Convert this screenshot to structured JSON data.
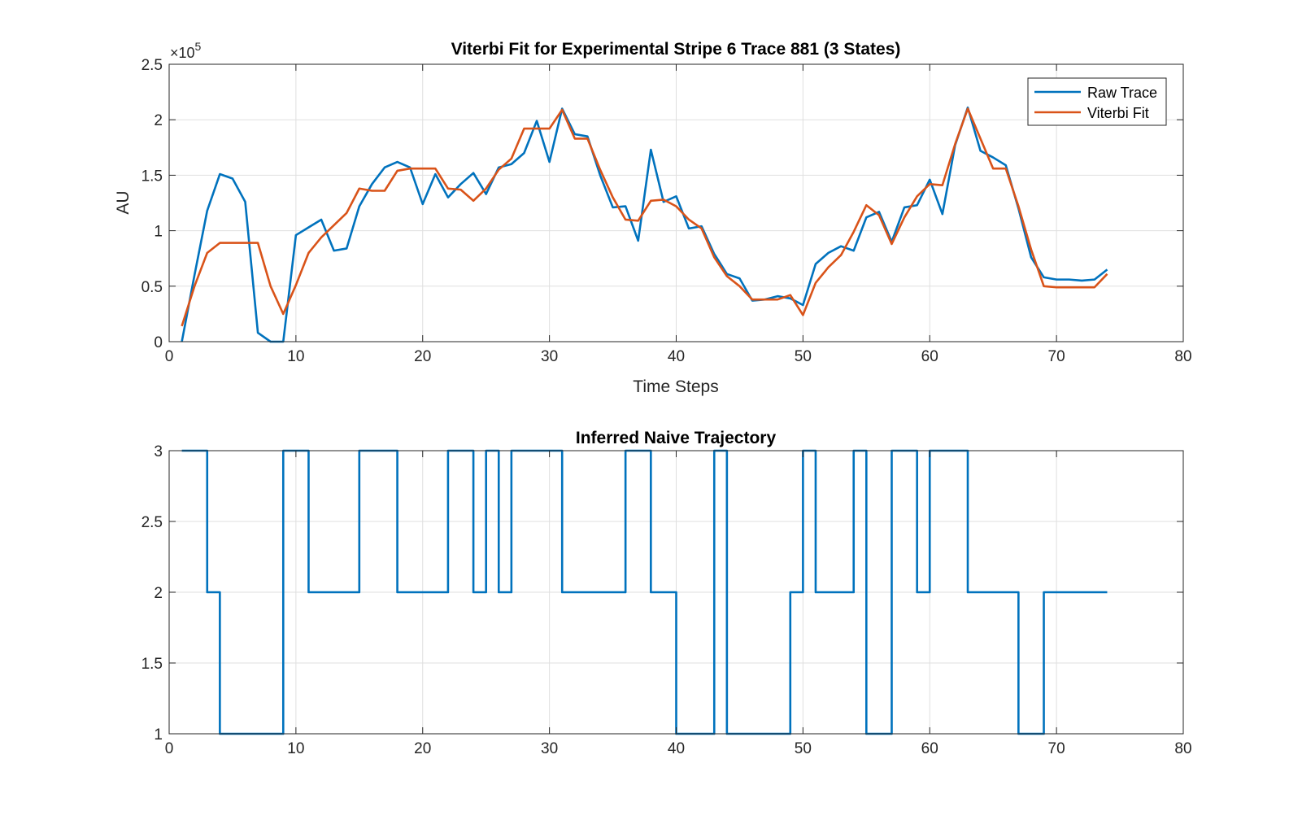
{
  "chart_data": [
    {
      "type": "line",
      "title": "Viterbi Fit for Experimental Stripe 6 Trace 881 (3 States)",
      "xlabel": "Time Steps",
      "ylabel": "AU",
      "y_exponent_label": "×10",
      "y_exponent_power": "5",
      "xlim": [
        0,
        80
      ],
      "ylim": [
        0,
        2.5
      ],
      "xticks": [
        0,
        10,
        20,
        30,
        40,
        50,
        60,
        70,
        80
      ],
      "yticks": [
        0,
        0.5,
        1,
        1.5,
        2,
        2.5
      ],
      "grid": true,
      "legend_position": "top-right",
      "series": [
        {
          "name": "Raw Trace",
          "color": "#0072BD",
          "x": [
            1,
            2,
            3,
            4,
            5,
            6,
            7,
            8,
            9,
            10,
            11,
            12,
            13,
            14,
            15,
            16,
            17,
            18,
            19,
            20,
            21,
            22,
            23,
            24,
            25,
            26,
            27,
            28,
            29,
            30,
            31,
            32,
            33,
            34,
            35,
            36,
            37,
            38,
            39,
            40,
            41,
            42,
            43,
            44,
            45,
            46,
            47,
            48,
            49,
            50,
            51,
            52,
            53,
            54,
            55,
            56,
            57,
            58,
            59,
            60,
            61,
            62,
            63,
            64,
            65,
            66,
            67,
            68,
            69,
            70,
            71,
            72,
            73,
            74
          ],
          "values": [
            0,
            0.6,
            1.18,
            1.51,
            1.47,
            1.26,
            0.08,
            0,
            0,
            0.96,
            1.03,
            1.1,
            0.82,
            0.84,
            1.22,
            1.42,
            1.57,
            1.62,
            1.57,
            1.24,
            1.51,
            1.3,
            1.42,
            1.52,
            1.33,
            1.57,
            1.6,
            1.7,
            1.99,
            1.62,
            2.1,
            1.87,
            1.85,
            1.5,
            1.21,
            1.22,
            0.91,
            1.73,
            1.26,
            1.31,
            1.02,
            1.04,
            0.79,
            0.61,
            0.57,
            0.37,
            0.38,
            0.41,
            0.39,
            0.33,
            0.7,
            0.8,
            0.86,
            0.82,
            1.12,
            1.17,
            0.9,
            1.21,
            1.23,
            1.46,
            1.15,
            1.77,
            2.11,
            1.72,
            1.66,
            1.59,
            1.2,
            0.76,
            0.58,
            0.56,
            0.56,
            0.55,
            0.56,
            0.65
          ]
        },
        {
          "name": "Viterbi Fit",
          "color": "#D95319",
          "x": [
            1,
            2,
            3,
            4,
            5,
            6,
            7,
            8,
            9,
            10,
            11,
            12,
            13,
            14,
            15,
            16,
            17,
            18,
            19,
            20,
            21,
            22,
            23,
            24,
            25,
            26,
            27,
            28,
            29,
            30,
            31,
            32,
            33,
            34,
            35,
            36,
            37,
            38,
            39,
            40,
            41,
            42,
            43,
            44,
            45,
            46,
            47,
            48,
            49,
            50,
            51,
            52,
            53,
            54,
            55,
            56,
            57,
            58,
            59,
            60,
            61,
            62,
            63,
            64,
            65,
            66,
            67,
            68,
            69,
            70,
            71,
            72,
            73,
            74
          ],
          "values": [
            0.14,
            0.5,
            0.8,
            0.89,
            0.89,
            0.89,
            0.89,
            0.5,
            0.25,
            0.51,
            0.8,
            0.94,
            1.05,
            1.16,
            1.38,
            1.36,
            1.36,
            1.54,
            1.56,
            1.56,
            1.56,
            1.38,
            1.37,
            1.27,
            1.38,
            1.55,
            1.65,
            1.92,
            1.92,
            1.92,
            2.09,
            1.83,
            1.83,
            1.55,
            1.3,
            1.1,
            1.09,
            1.27,
            1.28,
            1.22,
            1.1,
            1.02,
            0.76,
            0.59,
            0.5,
            0.38,
            0.38,
            0.38,
            0.42,
            0.24,
            0.53,
            0.67,
            0.78,
            0.99,
            1.23,
            1.14,
            0.88,
            1.12,
            1.31,
            1.42,
            1.41,
            1.78,
            2.1,
            1.83,
            1.56,
            1.56,
            1.22,
            0.83,
            0.5,
            0.49,
            0.49,
            0.49,
            0.49,
            0.61
          ]
        }
      ]
    },
    {
      "type": "line",
      "title": "Inferred Naive Trajectory",
      "xlim": [
        0,
        80
      ],
      "ylim": [
        1,
        3
      ],
      "xticks": [
        0,
        10,
        20,
        30,
        40,
        50,
        60,
        70,
        80
      ],
      "yticks": [
        1,
        1.5,
        2,
        2.5,
        3
      ],
      "grid": true,
      "step": true,
      "series": [
        {
          "color": "#0072BD",
          "x": [
            1,
            2,
            3,
            4,
            5,
            6,
            7,
            8,
            9,
            10,
            11,
            12,
            13,
            14,
            15,
            16,
            17,
            18,
            19,
            20,
            21,
            22,
            23,
            24,
            25,
            26,
            27,
            28,
            29,
            30,
            31,
            32,
            33,
            34,
            35,
            36,
            37,
            38,
            39,
            40,
            41,
            42,
            43,
            44,
            45,
            46,
            47,
            48,
            49,
            50,
            51,
            52,
            53,
            54,
            55,
            56,
            57,
            58,
            59,
            60,
            61,
            62,
            63,
            64,
            65,
            66,
            67,
            68,
            69,
            70,
            71,
            72,
            73,
            74
          ],
          "values": [
            3,
            3,
            2,
            1,
            1,
            1,
            1,
            1,
            3,
            3,
            2,
            2,
            2,
            2,
            3,
            3,
            3,
            2,
            2,
            2,
            2,
            3,
            3,
            2,
            3,
            2,
            3,
            3,
            3,
            3,
            2,
            2,
            2,
            2,
            2,
            3,
            3,
            2,
            2,
            1,
            1,
            1,
            3,
            1,
            1,
            1,
            1,
            1,
            2,
            3,
            2,
            2,
            2,
            3,
            1,
            1,
            3,
            3,
            2,
            3,
            3,
            3,
            2,
            2,
            2,
            2,
            1,
            1,
            2,
            2,
            2,
            2,
            2,
            2
          ]
        }
      ]
    }
  ]
}
